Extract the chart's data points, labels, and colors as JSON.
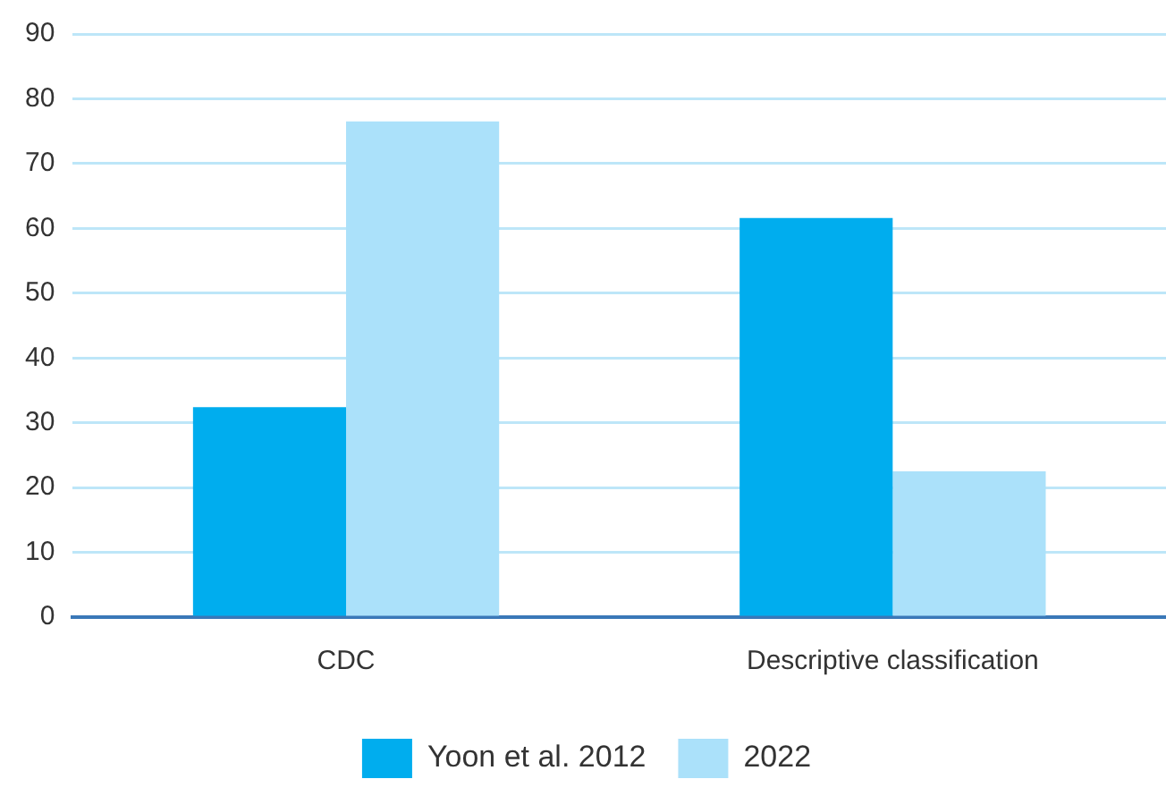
{
  "chart_data": {
    "type": "bar",
    "categories": [
      "CDC",
      "Descriptive classification"
    ],
    "series": [
      {
        "name": "Yoon et al. 2012",
        "color": "#00adee",
        "values": [
          32.4,
          61.6
        ]
      },
      {
        "name": "2022",
        "color": "#abe1fa",
        "values": [
          76.5,
          22.5
        ]
      }
    ],
    "ylim": [
      0,
      90
    ],
    "yticks": [
      0,
      10,
      20,
      30,
      40,
      50,
      60,
      70,
      80,
      90
    ],
    "grid": "y",
    "legend": "bottom"
  }
}
